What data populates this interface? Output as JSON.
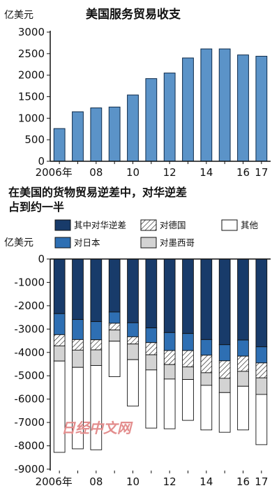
{
  "watermark": "日经中文网",
  "colors": {
    "top_bar": "#5b93c8",
    "top_bar_edge": "#0d2a4a",
    "china": "#183b6a",
    "japan": "#2e6fb3",
    "germany": "hatch",
    "mexico": "#d3d3d3",
    "others": "#ffffff",
    "edge": "#111111"
  },
  "chart_data": [
    {
      "type": "bar",
      "title": "美国服务贸易收支",
      "unit": "亿美元",
      "x": [
        2006,
        2007,
        2008,
        2009,
        2010,
        2011,
        2012,
        2013,
        2014,
        2015,
        2016,
        2017
      ],
      "x_tick_labels": [
        "2006年",
        "08",
        "10",
        "12",
        "14",
        "16",
        "17"
      ],
      "x_tick_years": [
        2006,
        2008,
        2010,
        2012,
        2014,
        2016,
        2017
      ],
      "values": [
        760,
        1150,
        1240,
        1260,
        1540,
        1920,
        2050,
        2400,
        2610,
        2610,
        2470,
        2440
      ],
      "ylim": [
        0,
        3000
      ],
      "yticks": [
        0,
        500,
        1000,
        1500,
        2000,
        2500,
        3000
      ],
      "grid": false
    },
    {
      "type": "bar",
      "stacked": true,
      "title": "在美国的货物贸易逆差中，对华逆差占到约一半",
      "title_lines": [
        "在美国的货物贸易逆差中，对华逆差",
        "占到约一半"
      ],
      "unit": "亿美元",
      "x": [
        2006,
        2007,
        2008,
        2009,
        2010,
        2011,
        2012,
        2013,
        2014,
        2015,
        2016,
        2017
      ],
      "x_tick_labels": [
        "2006年",
        "08",
        "10",
        "12",
        "14",
        "16",
        "17"
      ],
      "x_tick_years": [
        2006,
        2008,
        2010,
        2012,
        2014,
        2016,
        2017
      ],
      "ylim": [
        -9000,
        0
      ],
      "yticks": [
        0,
        -1000,
        -2000,
        -3000,
        -4000,
        -5000,
        -6000,
        -7000,
        -8000,
        -9000
      ],
      "legend_position": "top",
      "series": [
        {
          "name": "其中对华逆差",
          "values": [
            -2340,
            -2590,
            -2680,
            -2270,
            -2730,
            -2950,
            -3150,
            -3190,
            -3450,
            -3670,
            -3470,
            -3760
          ]
        },
        {
          "name": "对日本",
          "values": [
            -900,
            -860,
            -780,
            -480,
            -600,
            -630,
            -770,
            -730,
            -670,
            -690,
            -690,
            -690
          ]
        },
        {
          "name": "对德国",
          "values": [
            -480,
            -450,
            -430,
            -290,
            -310,
            -520,
            -600,
            -700,
            -750,
            -750,
            -650,
            -640
          ]
        },
        {
          "name": "对墨西哥",
          "values": [
            -650,
            -740,
            -670,
            -480,
            -670,
            -650,
            -620,
            -540,
            -540,
            -610,
            -640,
            -710
          ]
        },
        {
          "name": "其他",
          "values": [
            -3910,
            -3490,
            -3610,
            -1520,
            -1990,
            -2490,
            -2130,
            -1750,
            -1910,
            -1700,
            -1870,
            -2150
          ]
        }
      ]
    }
  ]
}
